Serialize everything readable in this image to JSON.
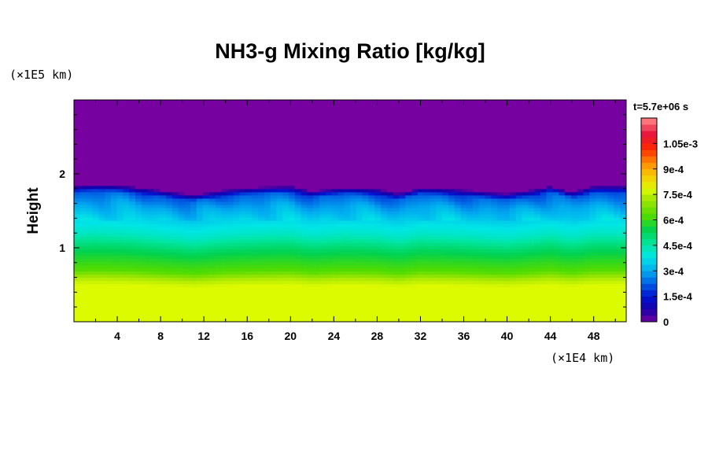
{
  "chart_data": {
    "type": "heatmap",
    "title": "NH3-g Mixing Ratio [kg/kg]",
    "ylabel": "Height",
    "xlabel": "",
    "x_unit": "(×1E4 km)",
    "y_unit": "(×1E5 km)",
    "time_label": "t=5.7e+06 s",
    "xlim": [
      0,
      51
    ],
    "ylim": [
      0,
      3
    ],
    "x_ticks": [
      4,
      8,
      12,
      16,
      20,
      24,
      28,
      32,
      36,
      40,
      44,
      48
    ],
    "x_tick_labels": [
      "4",
      "8",
      "12",
      "16",
      "20",
      "24",
      "28",
      "32",
      "36",
      "40",
      "44",
      "48"
    ],
    "y_ticks": [
      1,
      2
    ],
    "y_tick_labels": [
      "1",
      "2"
    ],
    "colorbar": {
      "min": 0,
      "max": 0.0012,
      "ticks": [
        0,
        0.00015,
        0.0003,
        0.00045,
        0.0006,
        0.00075,
        0.0009,
        0.00105
      ],
      "tick_labels": [
        "0",
        "1.5e-4",
        "3e-4",
        "4.5e-4",
        "6e-4",
        "7.5e-4",
        "9e-4",
        "1.05e-3"
      ]
    },
    "vertical_profile": [
      {
        "height": 0.0,
        "value": 0.00078
      },
      {
        "height": 0.5,
        "value": 0.00078
      },
      {
        "height": 0.6,
        "value": 0.00073
      },
      {
        "height": 0.7,
        "value": 0.00063
      },
      {
        "height": 0.85,
        "value": 0.00058
      },
      {
        "height": 1.0,
        "value": 0.00052
      },
      {
        "height": 1.2,
        "value": 0.00042
      },
      {
        "height": 1.4,
        "value": 0.00036
      },
      {
        "height": 1.6,
        "value": 0.00029
      },
      {
        "height": 1.75,
        "value": 0.00022
      },
      {
        "height": 1.8,
        "value": 0.0001
      },
      {
        "height": 1.85,
        "value": 0.0
      },
      {
        "height": 3.0,
        "value": 0.0
      }
    ],
    "cloud_top_height": [
      {
        "x": 0,
        "height": 1.8
      },
      {
        "x": 2,
        "height": 1.82
      },
      {
        "x": 5,
        "height": 1.8
      },
      {
        "x": 7,
        "height": 1.76
      },
      {
        "x": 9,
        "height": 1.72
      },
      {
        "x": 11,
        "height": 1.68
      },
      {
        "x": 12,
        "height": 1.7
      },
      {
        "x": 14,
        "height": 1.75
      },
      {
        "x": 17,
        "height": 1.78
      },
      {
        "x": 20,
        "height": 1.8
      },
      {
        "x": 22,
        "height": 1.73
      },
      {
        "x": 25,
        "height": 1.78
      },
      {
        "x": 28,
        "height": 1.76
      },
      {
        "x": 30,
        "height": 1.7
      },
      {
        "x": 32,
        "height": 1.78
      },
      {
        "x": 35,
        "height": 1.76
      },
      {
        "x": 38,
        "height": 1.72
      },
      {
        "x": 40,
        "height": 1.7
      },
      {
        "x": 42,
        "height": 1.74
      },
      {
        "x": 44,
        "height": 1.8
      },
      {
        "x": 46,
        "height": 1.72
      },
      {
        "x": 48,
        "height": 1.8
      },
      {
        "x": 51,
        "height": 1.8
      }
    ]
  }
}
